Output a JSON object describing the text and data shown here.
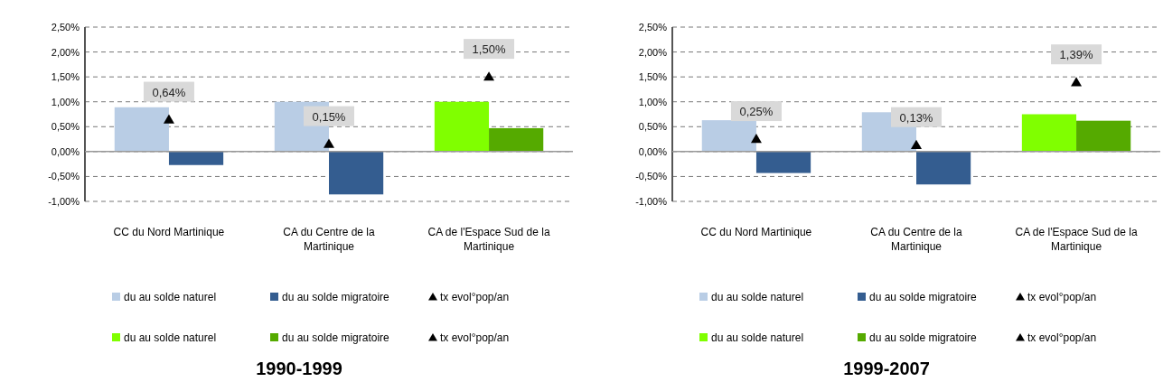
{
  "chart_data": [
    {
      "type": "bar",
      "title": "1990-1999",
      "categories": [
        "CC du Nord Martinique",
        "CA du Centre de la Martinique",
        "CA de l'Espace Sud de la Martinique"
      ],
      "ylim": [
        -1,
        2.5
      ],
      "yticks": [
        {
          "value": -1,
          "label": "-1,00%"
        },
        {
          "value": -0.5,
          "label": "-0,50%"
        },
        {
          "value": 0,
          "label": "0,00%"
        },
        {
          "value": 0.5,
          "label": "0,50%"
        },
        {
          "value": 1,
          "label": "1,00%"
        },
        {
          "value": 1.5,
          "label": "1,50%"
        },
        {
          "value": 2,
          "label": "2,00%"
        },
        {
          "value": 2.5,
          "label": "2,50%"
        }
      ],
      "grid": "y",
      "legend": "bottom",
      "series": [
        {
          "name": "du au solde  naturel",
          "color": "#b9cde5",
          "values": [
            0.89,
            1.0,
            null
          ]
        },
        {
          "name": "du au solde  migratoire",
          "color": "#345d90",
          "values": [
            -0.27,
            -0.86,
            null
          ]
        },
        {
          "name": "tx evol°pop/an",
          "type": "scatter",
          "marker": "triangle",
          "color": "#000000",
          "values": [
            0.64,
            0.15,
            null
          ],
          "value_labels": [
            "0,64%",
            "0,15%",
            null
          ]
        },
        {
          "name": "du au solde naturel",
          "color": "#80ff00",
          "values": [
            null,
            null,
            1.0
          ]
        },
        {
          "name": "du au solde migratoire",
          "color": "#55aa00",
          "values": [
            null,
            null,
            0.47
          ]
        },
        {
          "name": "tx evol°pop/an",
          "type": "scatter",
          "marker": "triangle",
          "color": "#000000",
          "values": [
            null,
            null,
            1.5
          ],
          "value_labels": [
            null,
            null,
            "1,50%"
          ]
        }
      ]
    },
    {
      "type": "bar",
      "title": "1999-2007",
      "categories": [
        "CC du Nord Martinique",
        "CA du Centre de la Martinique",
        "CA de l'Espace Sud de la Martinique"
      ],
      "ylim": [
        -1,
        2.5
      ],
      "yticks": [
        {
          "value": -1,
          "label": "-1,00%"
        },
        {
          "value": -0.5,
          "label": "-0,50%"
        },
        {
          "value": 0,
          "label": "0,00%"
        },
        {
          "value": 0.5,
          "label": "0,50%"
        },
        {
          "value": 1,
          "label": "1,00%"
        },
        {
          "value": 1.5,
          "label": "1,50%"
        },
        {
          "value": 2,
          "label": "2,00%"
        },
        {
          "value": 2.5,
          "label": "2,50%"
        }
      ],
      "grid": "y",
      "legend": "bottom",
      "series": [
        {
          "name": "du au solde naturel",
          "color": "#b9cde5",
          "values": [
            0.63,
            0.79,
            null
          ]
        },
        {
          "name": "du au solde migratoire",
          "color": "#345d90",
          "values": [
            -0.43,
            -0.66,
            null
          ]
        },
        {
          "name": "tx evol°pop/an",
          "type": "scatter",
          "marker": "triangle",
          "color": "#000000",
          "values": [
            0.25,
            0.13,
            null
          ],
          "value_labels": [
            "0,25%",
            "0,13%",
            null
          ]
        },
        {
          "name": "du au solde naturel",
          "color": "#80ff00",
          "values": [
            null,
            null,
            0.75
          ]
        },
        {
          "name": "du au solde migratoire",
          "color": "#55aa00",
          "values": [
            null,
            null,
            0.62
          ]
        },
        {
          "name": "tx evol°pop/an",
          "type": "scatter",
          "marker": "triangle",
          "color": "#000000",
          "values": [
            null,
            null,
            1.39
          ],
          "value_labels": [
            null,
            null,
            "1,39%"
          ]
        }
      ]
    }
  ]
}
